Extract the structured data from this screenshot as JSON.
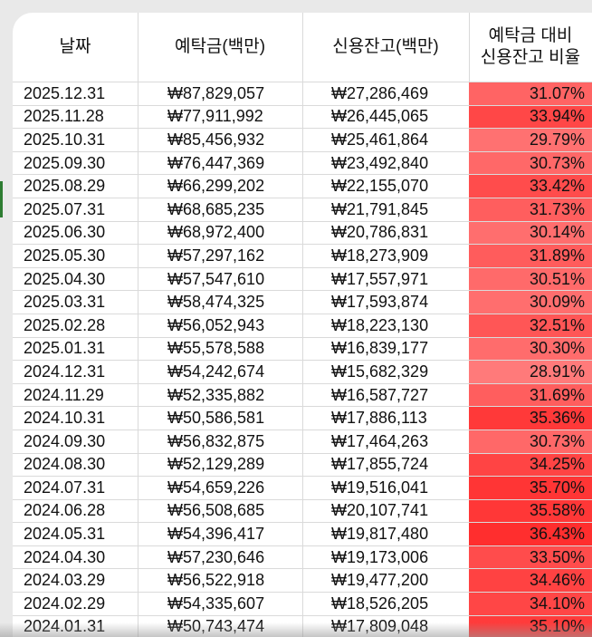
{
  "headers": {
    "date": "날짜",
    "deposit": "예탁금(백만)",
    "credit": "신용잔고(백만)",
    "ratio_line1": "예탁금 대비",
    "ratio_line2": "신용잔고 비율"
  },
  "rows": [
    {
      "date": "2025.12.31",
      "deposit": "₩87,829,057",
      "credit": "₩27,286,469",
      "ratio": "31.07%",
      "ratio_value": 31.07
    },
    {
      "date": "2025.11.28",
      "deposit": "₩77,911,992",
      "credit": "₩26,445,065",
      "ratio": "33.94%",
      "ratio_value": 33.94
    },
    {
      "date": "2025.10.31",
      "deposit": "₩85,456,932",
      "credit": "₩25,461,864",
      "ratio": "29.79%",
      "ratio_value": 29.79
    },
    {
      "date": "2025.09.30",
      "deposit": "₩76,447,369",
      "credit": "₩23,492,840",
      "ratio": "30.73%",
      "ratio_value": 30.73
    },
    {
      "date": "2025.08.29",
      "deposit": "₩66,299,202",
      "credit": "₩22,155,070",
      "ratio": "33.42%",
      "ratio_value": 33.42
    },
    {
      "date": "2025.07.31",
      "deposit": "₩68,685,235",
      "credit": "₩21,791,845",
      "ratio": "31.73%",
      "ratio_value": 31.73
    },
    {
      "date": "2025.06.30",
      "deposit": "₩68,972,400",
      "credit": "₩20,786,831",
      "ratio": "30.14%",
      "ratio_value": 30.14
    },
    {
      "date": "2025.05.30",
      "deposit": "₩57,297,162",
      "credit": "₩18,273,909",
      "ratio": "31.89%",
      "ratio_value": 31.89
    },
    {
      "date": "2025.04.30",
      "deposit": "₩57,547,610",
      "credit": "₩17,557,971",
      "ratio": "30.51%",
      "ratio_value": 30.51
    },
    {
      "date": "2025.03.31",
      "deposit": "₩58,474,325",
      "credit": "₩17,593,874",
      "ratio": "30.09%",
      "ratio_value": 30.09
    },
    {
      "date": "2025.02.28",
      "deposit": "₩56,052,943",
      "credit": "₩18,223,130",
      "ratio": "32.51%",
      "ratio_value": 32.51
    },
    {
      "date": "2025.01.31",
      "deposit": "₩55,578,588",
      "credit": "₩16,839,177",
      "ratio": "30.30%",
      "ratio_value": 30.3
    },
    {
      "date": "2024.12.31",
      "deposit": "₩54,242,674",
      "credit": "₩15,682,329",
      "ratio": "28.91%",
      "ratio_value": 28.91
    },
    {
      "date": "2024.11.29",
      "deposit": "₩52,335,882",
      "credit": "₩16,587,727",
      "ratio": "31.69%",
      "ratio_value": 31.69
    },
    {
      "date": "2024.10.31",
      "deposit": "₩50,586,581",
      "credit": "₩17,886,113",
      "ratio": "35.36%",
      "ratio_value": 35.36
    },
    {
      "date": "2024.09.30",
      "deposit": "₩56,832,875",
      "credit": "₩17,464,263",
      "ratio": "30.73%",
      "ratio_value": 30.73
    },
    {
      "date": "2024.08.30",
      "deposit": "₩52,129,289",
      "credit": "₩17,855,724",
      "ratio": "34.25%",
      "ratio_value": 34.25
    },
    {
      "date": "2024.07.31",
      "deposit": "₩54,659,226",
      "credit": "₩19,516,041",
      "ratio": "35.70%",
      "ratio_value": 35.7
    },
    {
      "date": "2024.06.28",
      "deposit": "₩56,508,685",
      "credit": "₩20,107,741",
      "ratio": "35.58%",
      "ratio_value": 35.58
    },
    {
      "date": "2024.05.31",
      "deposit": "₩54,396,417",
      "credit": "₩19,817,480",
      "ratio": "36.43%",
      "ratio_value": 36.43
    },
    {
      "date": "2024.04.30",
      "deposit": "₩57,230,646",
      "credit": "₩19,173,006",
      "ratio": "33.50%",
      "ratio_value": 33.5
    },
    {
      "date": "2024.03.29",
      "deposit": "₩56,522,918",
      "credit": "₩19,477,200",
      "ratio": "34.46%",
      "ratio_value": 34.46
    },
    {
      "date": "2024.02.29",
      "deposit": "₩54,335,607",
      "credit": "₩18,526,205",
      "ratio": "34.10%",
      "ratio_value": 34.1
    },
    {
      "date": "2024.01.31",
      "deposit": "₩50,743,474",
      "credit": "₩17,809,048",
      "ratio": "35.10%",
      "ratio_value": 35.1
    }
  ],
  "colors": {
    "heat_low": "#ff7a7a",
    "heat_high": "#ff2e2e",
    "grid": "#d9d9d9"
  }
}
